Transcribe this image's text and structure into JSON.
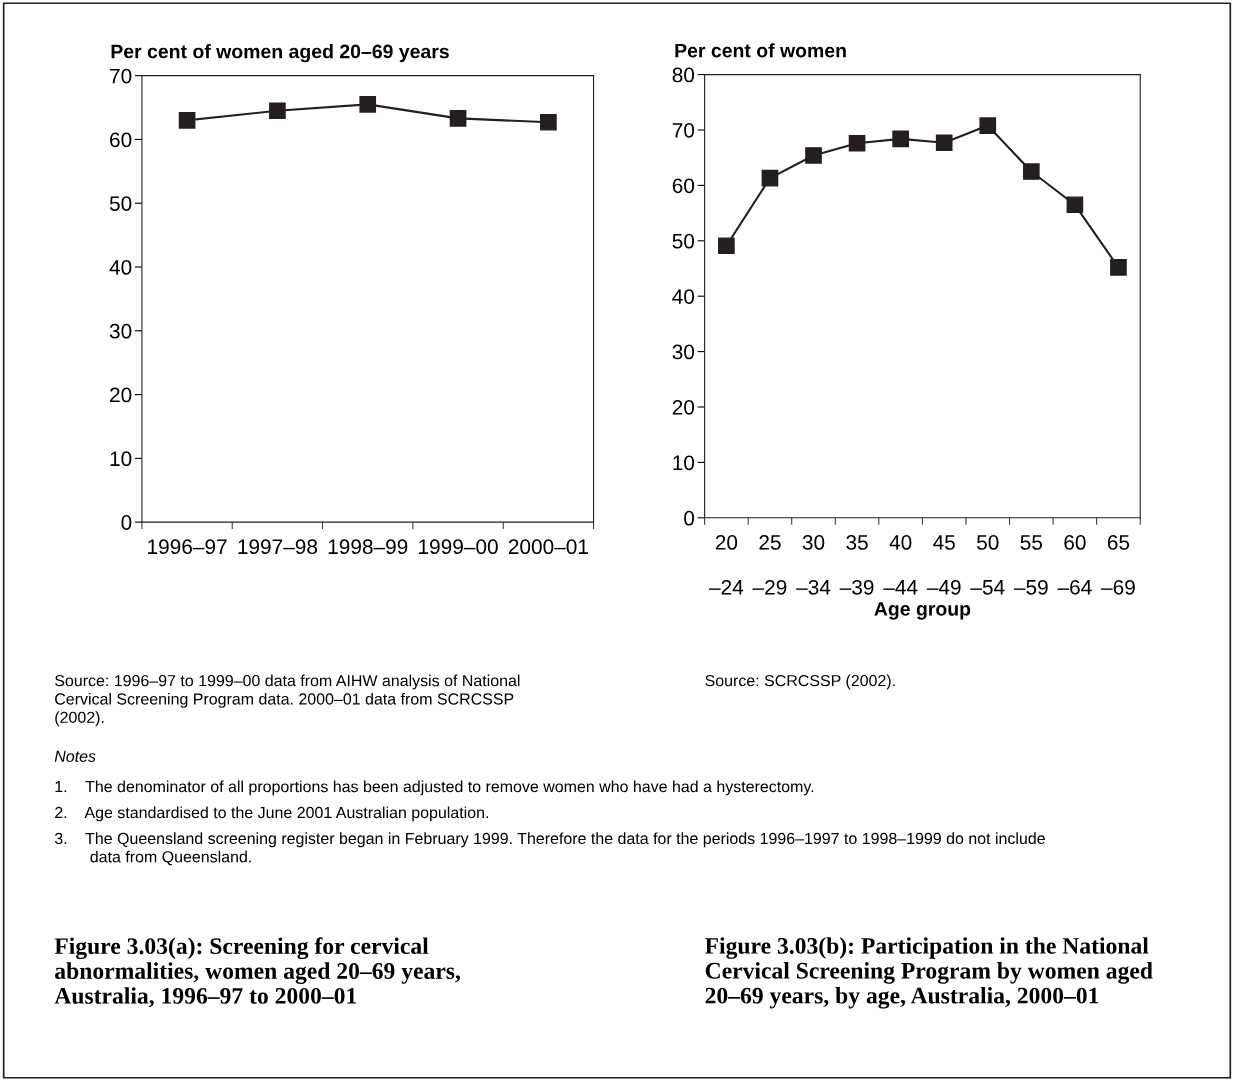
{
  "chart_data": [
    {
      "type": "line",
      "title": "Figure 3.03(a): Screening for cervical\nabnormalities, women aged 20–69 years,\nAustralia, 1996–97 to 2000–01",
      "ylabel": "Per cent of women aged 20–69 years",
      "categories": [
        "1996–97",
        "1997–98",
        "1998–99",
        "1999–00",
        "2000–01"
      ],
      "series": [
        {
          "color": "#231f20",
          "values": [
            63.0,
            64.5,
            65.5,
            63.3,
            62.7
          ]
        }
      ],
      "ylim": [
        0,
        70
      ],
      "yticks": [
        0,
        10,
        20,
        30,
        40,
        50,
        60,
        70
      ],
      "marker": "square",
      "line_style": "solid",
      "grid": false,
      "legend": false,
      "annotations": [
        "Source: 1996–97 to 1999–00 data from AIHW analysis of National\nCervical Screening Program data. 2000–01 data from SCRCSSP\n(2002).",
        "Notes",
        "1.    The denominator of all proportions has been adjusted to remove women who have had a hysterectomy.",
        "2.    Age standardised to the June 2001 Australian population.",
        "3.    The Queensland screening register began in February 1999. Therefore the data for the periods 1996–1997 to 1998–1999 do not include\n        data from Queensland."
      ]
    },
    {
      "type": "line",
      "title": "Figure 3.03(b): Participation in the National\nCervical Screening Program by women aged\n20–69 years, by age, Australia, 2000–01",
      "ylabel": "Per cent of women",
      "xlabel": "Age group",
      "categories": [
        "20\n\n–24",
        "25\n\n–29",
        "30\n\n–34",
        "35\n\n–39",
        "40\n\n–44",
        "45\n\n–49",
        "50\n\n–54",
        "55\n\n–59",
        "60\n\n–64",
        "65\n\n–69"
      ],
      "series": [
        {
          "color": "#231f20",
          "values": [
            49.1,
            61.3,
            65.4,
            67.6,
            68.4,
            67.7,
            70.8,
            62.5,
            56.5,
            45.2
          ]
        }
      ],
      "ylim": [
        0,
        80
      ],
      "yticks": [
        0,
        10,
        20,
        30,
        40,
        50,
        60,
        70,
        80
      ],
      "marker": "square",
      "line_style": "solid",
      "grid": false,
      "legend": false,
      "annotations": [
        "Source: SCRCSSP (2002)."
      ]
    }
  ]
}
